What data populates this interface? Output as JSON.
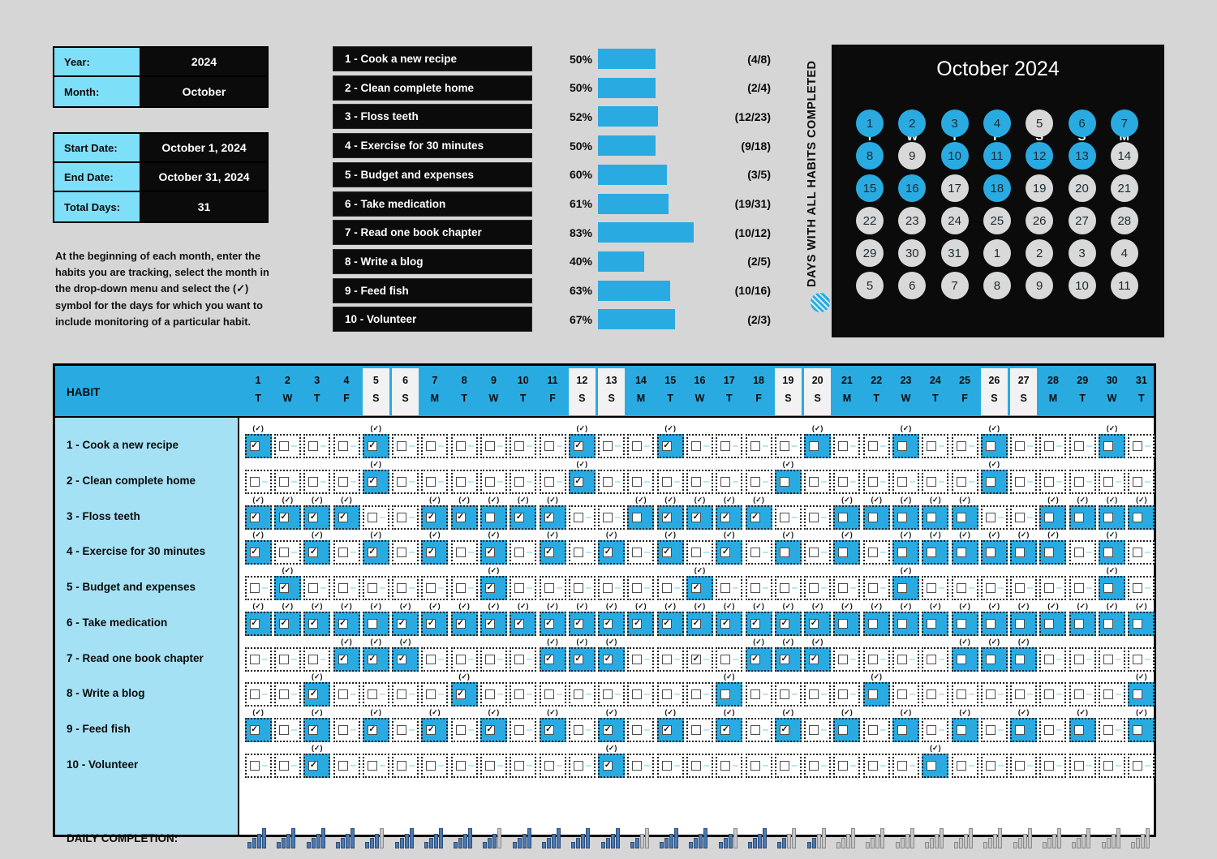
{
  "info": {
    "year_label": "Year:",
    "year_value": "2024",
    "month_label": "Month:",
    "month_value": "October",
    "start_label": "Start Date:",
    "start_value": "October 1, 2024",
    "end_label": "End Date:",
    "end_value": "October 31, 2024",
    "days_label": "Total Days:",
    "days_value": "31"
  },
  "instructions": "At the beginning of each month, enter the habits you are tracking, select the month in the drop-down menu and select the (✓) symbol for the days for which you want to include monitoring of a particular habit.",
  "colors": {
    "accent": "#29abe2",
    "label_blue": "#7ee0f8",
    "panel_black": "#0b0b0b",
    "page_bg": "#d6d6d6",
    "calendar_gray": "#d9d9d9",
    "bar_blue": "#4a7ab5",
    "bar_gray": "#c6c6c6"
  },
  "habit_stats": [
    {
      "label": "1 - Cook a new recipe",
      "percent": "50%",
      "pct": 50,
      "fraction": "(4/8)"
    },
    {
      "label": "2 - Clean complete home",
      "percent": "50%",
      "pct": 50,
      "fraction": "(2/4)"
    },
    {
      "label": "3 - Floss teeth",
      "percent": "52%",
      "pct": 52,
      "fraction": "(12/23)"
    },
    {
      "label": "4 - Exercise for 30 minutes",
      "percent": "50%",
      "pct": 50,
      "fraction": "(9/18)"
    },
    {
      "label": "5 - Budget and expenses",
      "percent": "60%",
      "pct": 60,
      "fraction": "(3/5)"
    },
    {
      "label": "6 - Take medication",
      "percent": "61%",
      "pct": 61,
      "fraction": "(19/31)"
    },
    {
      "label": "7 - Read one book chapter",
      "percent": "83%",
      "pct": 83,
      "fraction": "(10/12)"
    },
    {
      "label": "8 - Write a blog",
      "percent": "40%",
      "pct": 40,
      "fraction": "(2/5)"
    },
    {
      "label": "9 - Feed fish",
      "percent": "63%",
      "pct": 63,
      "fraction": "(10/16)"
    },
    {
      "label": "10 - Volunteer",
      "percent": "67%",
      "pct": 67,
      "fraction": "(2/3)"
    }
  ],
  "calendar": {
    "title": "October 2024",
    "side_label": "DAYS WITH ALL HABITS COMPLETED",
    "weekdays": [
      "T",
      "W",
      "T",
      "F",
      "S",
      "S",
      "M"
    ],
    "weeks": [
      [
        {
          "d": "1",
          "on": true
        },
        {
          "d": "2",
          "on": true
        },
        {
          "d": "3",
          "on": true
        },
        {
          "d": "4",
          "on": true
        },
        {
          "d": "5",
          "on": false
        },
        {
          "d": "6",
          "on": true
        },
        {
          "d": "7",
          "on": true
        }
      ],
      [
        {
          "d": "8",
          "on": true
        },
        {
          "d": "9",
          "on": false
        },
        {
          "d": "10",
          "on": true
        },
        {
          "d": "11",
          "on": true
        },
        {
          "d": "12",
          "on": true
        },
        {
          "d": "13",
          "on": true
        },
        {
          "d": "14",
          "on": false
        }
      ],
      [
        {
          "d": "15",
          "on": true
        },
        {
          "d": "16",
          "on": true
        },
        {
          "d": "17",
          "on": false
        },
        {
          "d": "18",
          "on": true
        },
        {
          "d": "19",
          "on": false
        },
        {
          "d": "20",
          "on": false
        },
        {
          "d": "21",
          "on": false
        }
      ],
      [
        {
          "d": "22",
          "on": false
        },
        {
          "d": "23",
          "on": false
        },
        {
          "d": "24",
          "on": false
        },
        {
          "d": "25",
          "on": false
        },
        {
          "d": "26",
          "on": false
        },
        {
          "d": "27",
          "on": false
        },
        {
          "d": "28",
          "on": false
        }
      ],
      [
        {
          "d": "29",
          "on": false
        },
        {
          "d": "30",
          "on": false
        },
        {
          "d": "31",
          "on": false
        },
        {
          "d": "1",
          "on": false
        },
        {
          "d": "2",
          "on": false
        },
        {
          "d": "3",
          "on": false
        },
        {
          "d": "4",
          "on": false
        }
      ],
      [
        {
          "d": "5",
          "on": false
        },
        {
          "d": "6",
          "on": false
        },
        {
          "d": "7",
          "on": false
        },
        {
          "d": "8",
          "on": false
        },
        {
          "d": "9",
          "on": false
        },
        {
          "d": "10",
          "on": false
        },
        {
          "d": "11",
          "on": false
        }
      ]
    ]
  },
  "grid": {
    "habit_header": "HABIT",
    "check_label": "(✓)",
    "daily_label": "DAILY COMPLETION:",
    "days": [
      {
        "n": "1",
        "w": "T",
        "weekend": false
      },
      {
        "n": "2",
        "w": "W",
        "weekend": false
      },
      {
        "n": "3",
        "w": "T",
        "weekend": false
      },
      {
        "n": "4",
        "w": "F",
        "weekend": false
      },
      {
        "n": "5",
        "w": "S",
        "weekend": true
      },
      {
        "n": "6",
        "w": "S",
        "weekend": true
      },
      {
        "n": "7",
        "w": "M",
        "weekend": false
      },
      {
        "n": "8",
        "w": "T",
        "weekend": false
      },
      {
        "n": "9",
        "w": "W",
        "weekend": false
      },
      {
        "n": "10",
        "w": "T",
        "weekend": false
      },
      {
        "n": "11",
        "w": "F",
        "weekend": false
      },
      {
        "n": "12",
        "w": "S",
        "weekend": true
      },
      {
        "n": "13",
        "w": "S",
        "weekend": true
      },
      {
        "n": "14",
        "w": "M",
        "weekend": false
      },
      {
        "n": "15",
        "w": "T",
        "weekend": false
      },
      {
        "n": "16",
        "w": "W",
        "weekend": false
      },
      {
        "n": "17",
        "w": "T",
        "weekend": false
      },
      {
        "n": "18",
        "w": "F",
        "weekend": false
      },
      {
        "n": "19",
        "w": "S",
        "weekend": true
      },
      {
        "n": "20",
        "w": "S",
        "weekend": true
      },
      {
        "n": "21",
        "w": "M",
        "weekend": false
      },
      {
        "n": "22",
        "w": "T",
        "weekend": false
      },
      {
        "n": "23",
        "w": "W",
        "weekend": false
      },
      {
        "n": "24",
        "w": "T",
        "weekend": false
      },
      {
        "n": "25",
        "w": "F",
        "weekend": false
      },
      {
        "n": "26",
        "w": "S",
        "weekend": true
      },
      {
        "n": "27",
        "w": "S",
        "weekend": true
      },
      {
        "n": "28",
        "w": "M",
        "weekend": false
      },
      {
        "n": "29",
        "w": "T",
        "weekend": false
      },
      {
        "n": "30",
        "w": "W",
        "weekend": false
      },
      {
        "n": "31",
        "w": "T",
        "weekend": false
      }
    ],
    "rows": [
      {
        "name": "1 - Cook a new recipe",
        "cells": [
          "m1",
          "e",
          "e",
          "e",
          "m1",
          "e",
          "e",
          "e",
          "e",
          "e",
          "e",
          "m1",
          "e",
          "e",
          "m1",
          "e",
          "e",
          "e",
          "e",
          "m0",
          "e",
          "e",
          "m0",
          "e",
          "e",
          "m0",
          "e",
          "e",
          "e",
          "m0",
          "e"
        ]
      },
      {
        "name": "2 - Clean complete home",
        "cells": [
          "e",
          "e",
          "e",
          "e",
          "m1",
          "e",
          "e",
          "e",
          "e",
          "e",
          "e",
          "m1",
          "e",
          "e",
          "e",
          "e",
          "e",
          "e",
          "m0",
          "e",
          "e",
          "e",
          "e",
          "e",
          "e",
          "m0",
          "e",
          "e",
          "e",
          "e",
          "e"
        ]
      },
      {
        "name": "3 - Floss teeth",
        "cells": [
          "m1",
          "m1",
          "m1",
          "m1",
          "e",
          "e",
          "m1",
          "m1",
          "m0",
          "m1",
          "m1",
          "e",
          "e",
          "m0",
          "m1",
          "m1",
          "m1",
          "m1",
          "e",
          "e",
          "m0",
          "m0",
          "m0",
          "m0",
          "m0",
          "e",
          "e",
          "m0",
          "m0",
          "m0",
          "m0"
        ]
      },
      {
        "name": "4 - Exercise for 30 minutes",
        "cells": [
          "m1",
          "e",
          "m1",
          "e",
          "m1",
          "e",
          "m1",
          "e",
          "m1",
          "e",
          "m1",
          "e",
          "m1",
          "e",
          "m1",
          "e",
          "m1",
          "e",
          "m0",
          "e",
          "m0",
          "e",
          "m0",
          "m0",
          "m0",
          "m0",
          "m0",
          "m0",
          "e",
          "m0",
          "e"
        ]
      },
      {
        "name": "5 - Budget and expenses",
        "cells": [
          "e",
          "m1",
          "e",
          "e",
          "e",
          "e",
          "e",
          "e",
          "m1",
          "e",
          "e",
          "e",
          "e",
          "e",
          "e",
          "m1",
          "e",
          "e",
          "e",
          "e",
          "e",
          "e",
          "m0",
          "e",
          "e",
          "e",
          "e",
          "e",
          "e",
          "m0",
          "e"
        ]
      },
      {
        "name": "6 - Take medication",
        "cells": [
          "m1",
          "m1",
          "m1",
          "m1",
          "m0",
          "m1",
          "m1",
          "m1",
          "m1",
          "m1",
          "m1",
          "m1",
          "m1",
          "m1",
          "m1",
          "m1",
          "m1",
          "m1",
          "m1",
          "m1",
          "m0",
          "m0",
          "m0",
          "m0",
          "m0",
          "m0",
          "m0",
          "m0",
          "m0",
          "m0",
          "m0"
        ]
      },
      {
        "name": "7 - Read one book chapter",
        "cells": [
          "e",
          "e",
          "e",
          "m1",
          "m1",
          "m1",
          "e",
          "e",
          "e",
          "e",
          "m1",
          "m1",
          "m1",
          "e",
          "e",
          "c1",
          "e",
          "m1",
          "m1",
          "m1",
          "e",
          "e",
          "e",
          "e",
          "m0",
          "m0",
          "m0",
          "e",
          "e",
          "e",
          "e"
        ]
      },
      {
        "name": "8 - Write a blog",
        "cells": [
          "e",
          "e",
          "m1",
          "e",
          "e",
          "e",
          "e",
          "m1",
          "e",
          "e",
          "e",
          "e",
          "e",
          "e",
          "e",
          "e",
          "m0",
          "e",
          "e",
          "e",
          "e",
          "m0",
          "e",
          "e",
          "e",
          "e",
          "e",
          "e",
          "e",
          "e",
          "m0"
        ]
      },
      {
        "name": "9 - Feed fish",
        "cells": [
          "m1",
          "e",
          "m1",
          "e",
          "m1",
          "e",
          "m1",
          "e",
          "m1",
          "e",
          "m1",
          "e",
          "m1",
          "e",
          "m1",
          "e",
          "m1",
          "e",
          "m1",
          "e",
          "m0",
          "e",
          "m0",
          "e",
          "m0",
          "e",
          "m0",
          "e",
          "m0",
          "e",
          "m0"
        ]
      },
      {
        "name": "10 - Volunteer",
        "cells": [
          "e",
          "e",
          "m1",
          "e",
          "e",
          "e",
          "e",
          "e",
          "e",
          "e",
          "e",
          "e",
          "m1",
          "e",
          "e",
          "e",
          "e",
          "e",
          "e",
          "e",
          "e",
          "e",
          "e",
          "m0",
          "e",
          "e",
          "e",
          "e",
          "e",
          "e",
          "e"
        ]
      }
    ],
    "daily_levels": [
      4,
      4,
      4,
      4,
      3,
      4,
      4,
      4,
      3,
      4,
      4,
      4,
      4,
      2,
      4,
      4,
      3,
      4,
      2,
      2,
      0,
      0,
      0,
      0,
      0,
      0,
      0,
      0,
      0,
      0,
      0
    ]
  }
}
